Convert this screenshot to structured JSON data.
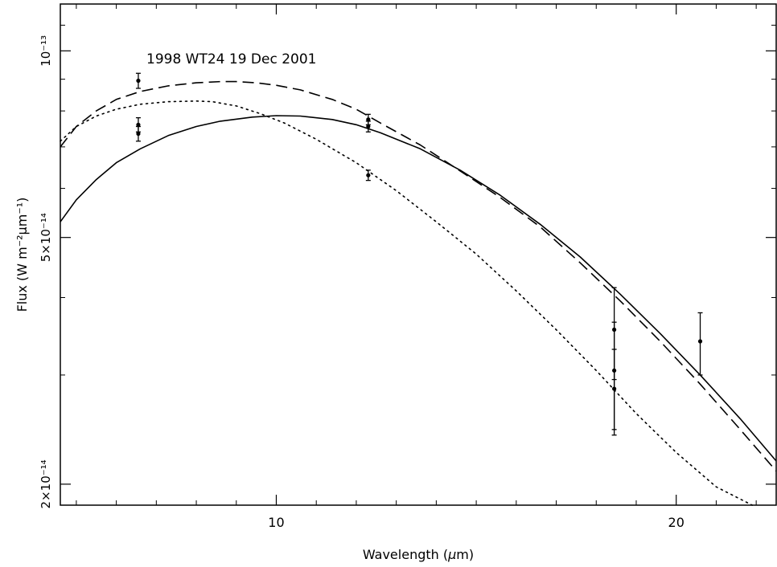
{
  "chart_data": {
    "type": "line",
    "title": "1998 WT24 19 Dec 2001",
    "xlabel_main": "Wavelength (",
    "xlabel_mu": "μ",
    "xlabel_end": "m)",
    "ylabel": "Flux (W m⁻²μm⁻¹)",
    "x_scale": "linear",
    "y_scale": "log",
    "xlim": [
      4.6,
      22.5
    ],
    "ylim": [
      1.85e-14,
      1.19e-13
    ],
    "x_ticks": [
      {
        "value": 10,
        "label": "10"
      },
      {
        "value": 20,
        "label": "20"
      }
    ],
    "y_ticks": [
      {
        "value": 1e-13,
        "label": "10⁻¹³"
      },
      {
        "value": 5e-14,
        "label": "5×10⁻¹⁴"
      },
      {
        "value": 2e-14,
        "label": "2×10⁻¹⁴"
      }
    ],
    "x_minor_ticks": [
      5,
      6,
      7,
      8,
      9,
      11,
      12,
      13,
      14,
      15,
      16,
      17,
      18,
      19,
      21,
      22
    ],
    "y_minor_ticks": [
      1.1e-13,
      9e-14,
      8e-14,
      7e-14,
      6e-14,
      4e-14,
      3e-14
    ],
    "series": [
      {
        "style": "solid",
        "x": [
          4.6,
          5.0,
          5.5,
          6.0,
          6.6,
          7.3,
          8.0,
          8.6,
          9.4,
          10.0,
          10.6,
          11.4,
          12.0,
          12.6,
          13.6,
          14.6,
          15.6,
          16.6,
          17.6,
          18.6,
          19.6,
          20.6,
          21.6,
          22.5
        ],
        "y": [
          5.3e-14,
          5.75e-14,
          6.2e-14,
          6.6e-14,
          6.95e-14,
          7.3e-14,
          7.55e-14,
          7.7e-14,
          7.82e-14,
          7.86e-14,
          7.85e-14,
          7.75e-14,
          7.6e-14,
          7.38e-14,
          6.95e-14,
          6.42e-14,
          5.85e-14,
          5.25e-14,
          4.65e-14,
          4.05e-14,
          3.5e-14,
          3e-14,
          2.55e-14,
          2.18e-14
        ]
      },
      {
        "style": "dashed",
        "x": [
          4.6,
          5.0,
          5.5,
          6.0,
          6.6,
          7.3,
          8.0,
          8.6,
          9.0,
          9.5,
          10.0,
          10.6,
          11.4,
          12.0,
          12.6,
          13.6,
          14.6,
          15.6,
          16.6,
          17.6,
          18.6,
          19.6,
          20.6,
          21.6,
          22.5
        ],
        "y": [
          7e-14,
          7.55e-14,
          8e-14,
          8.35e-14,
          8.6e-14,
          8.78e-14,
          8.88e-14,
          8.92e-14,
          8.92e-14,
          8.88e-14,
          8.8e-14,
          8.65e-14,
          8.35e-14,
          8.05e-14,
          7.65e-14,
          7.05e-14,
          6.4e-14,
          5.8e-14,
          5.2e-14,
          4.55e-14,
          3.95e-14,
          3.4e-14,
          2.9e-14,
          2.45e-14,
          2.1e-14
        ]
      },
      {
        "style": "dotted",
        "x": [
          4.6,
          5.0,
          5.5,
          6.0,
          6.6,
          7.3,
          8.0,
          8.4,
          9.0,
          9.6,
          10.2,
          11.0,
          12.0,
          13.0,
          14.0,
          15.0,
          16.0,
          17.0,
          18.0,
          19.0,
          20.0,
          21.0,
          21.9
        ],
        "y": [
          7.15e-14,
          7.55e-14,
          7.85e-14,
          8.05e-14,
          8.2e-14,
          8.28e-14,
          8.3e-14,
          8.28e-14,
          8.15e-14,
          7.92e-14,
          7.65e-14,
          7.2e-14,
          6.6e-14,
          5.95e-14,
          5.3e-14,
          4.7e-14,
          4.1e-14,
          3.55e-14,
          3.05e-14,
          2.6e-14,
          2.25e-14,
          1.98e-14,
          1.85e-14
        ]
      }
    ],
    "points": [
      {
        "x": 6.55,
        "y": 8.95e-14,
        "err_hi": 2.5e-15,
        "err_lo": 2.5e-15
      },
      {
        "x": 6.55,
        "y": 7.6e-14,
        "err_hi": 2e-15,
        "err_lo": 2e-15
      },
      {
        "x": 6.55,
        "y": 7.35e-14,
        "err_hi": 2e-15,
        "err_lo": 2e-15
      },
      {
        "x": 12.3,
        "y": 7.75e-14,
        "err_hi": 1.5e-15,
        "err_lo": 1.5e-15
      },
      {
        "x": 12.3,
        "y": 7.55e-14,
        "err_hi": 1.5e-15,
        "err_lo": 1.5e-15
      },
      {
        "x": 12.3,
        "y": 6.3e-14,
        "err_hi": 1.2e-15,
        "err_lo": 1.2e-15
      },
      {
        "x": 18.45,
        "y": 3.55e-14,
        "err_hi": 6e-15,
        "err_lo": 6e-15
      },
      {
        "x": 18.45,
        "y": 3.05e-14,
        "err_hi": 6e-15,
        "err_lo": 6e-15
      },
      {
        "x": 18.45,
        "y": 2.85e-14,
        "err_hi": 4.5e-15,
        "err_lo": 4.5e-15
      },
      {
        "x": 20.6,
        "y": 3.4e-14,
        "err_hi": 3.8e-15,
        "err_lo": 4e-15
      }
    ],
    "grid": false,
    "legend": "none"
  }
}
